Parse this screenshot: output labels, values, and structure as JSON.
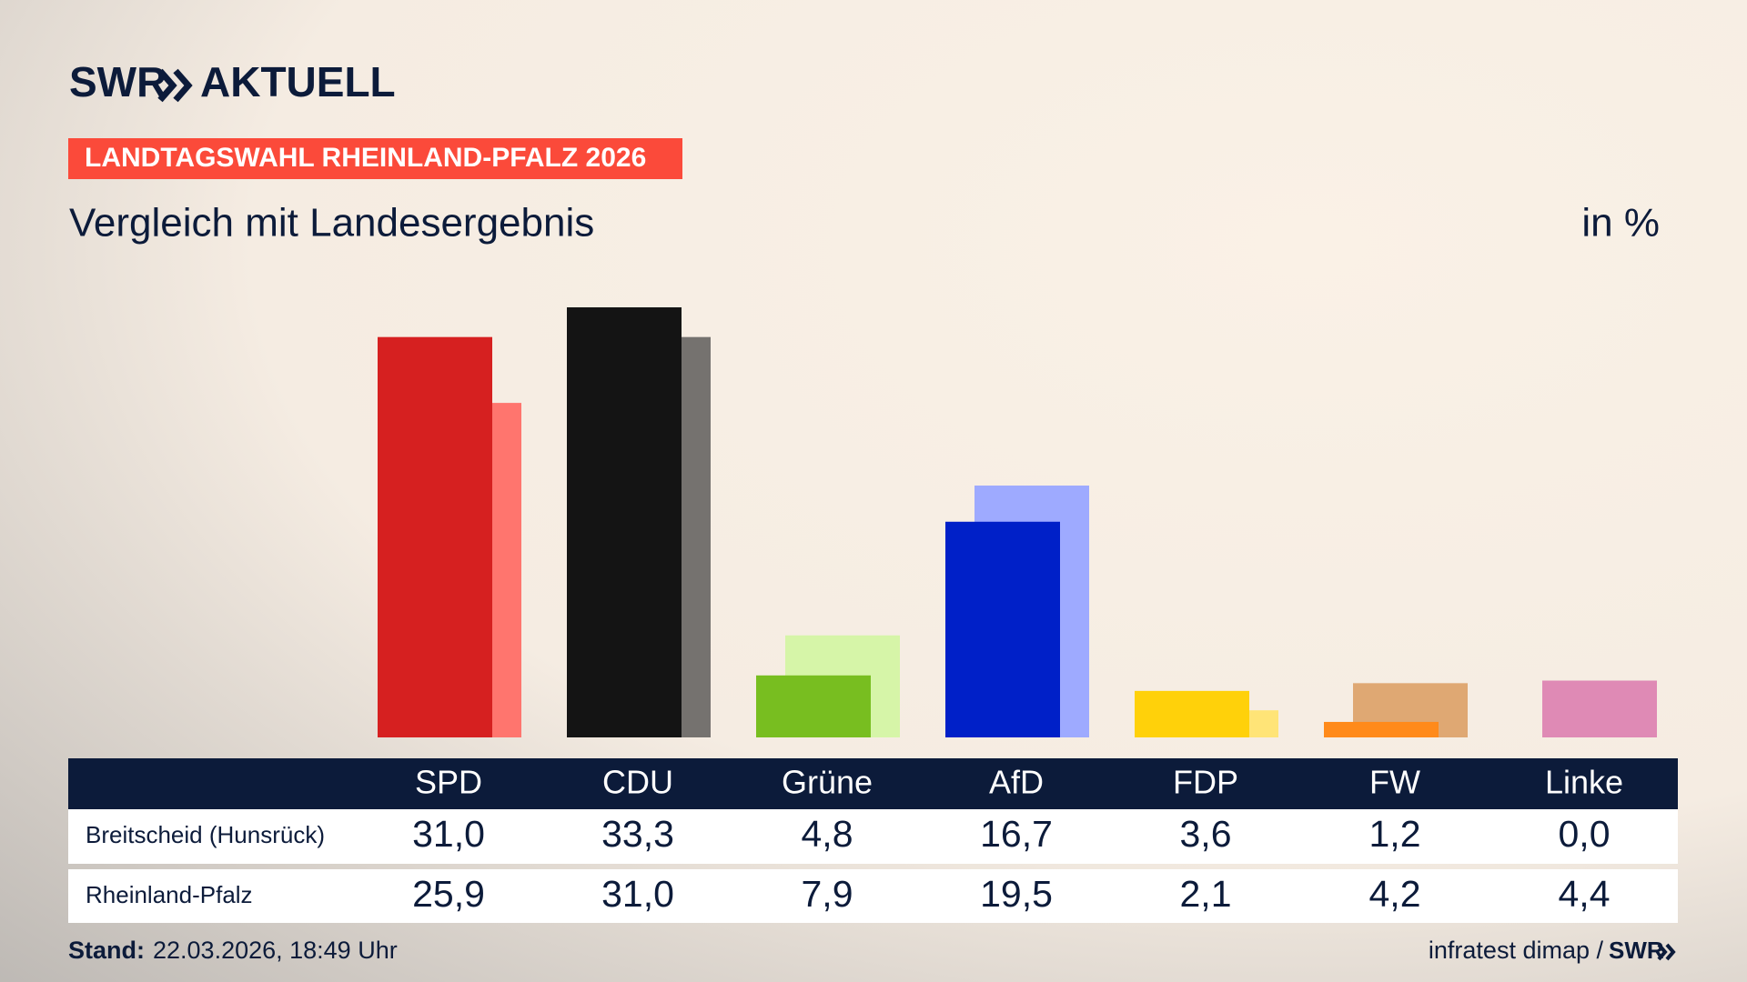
{
  "header": {
    "brand": "SWR",
    "brand_suffix": "AKTUELL",
    "kicker": "LANDTAGSWAHL RHEINLAND-PFALZ 2026"
  },
  "chart_data": {
    "type": "bar",
    "subtitle": "Vergleich mit Landesergebnis",
    "unit": "in %",
    "categories": [
      "SPD",
      "CDU",
      "Grüne",
      "AfD",
      "FDP",
      "FW",
      "Linke"
    ],
    "series": [
      {
        "name": "Breitscheid (Hunsrück)",
        "colors": [
          "#d62020",
          "#141414",
          "#78be20",
          "#0020c8",
          "#ffd10a",
          "#ff8a1a",
          "#e8bcd3"
        ],
        "values": [
          31.0,
          33.3,
          4.8,
          16.7,
          3.6,
          1.2,
          0.0
        ],
        "value_labels": [
          "31,0",
          "33,3",
          "4,8",
          "16,7",
          "3,6",
          "1,2",
          "0,0"
        ]
      },
      {
        "name": "Rheinland-Pfalz",
        "colors": [
          "#ff756e",
          "#75726f",
          "#d6f5a8",
          "#9eaaff",
          "#ffe477",
          "#dfa873",
          "#df8ab5"
        ],
        "values": [
          25.9,
          31.0,
          7.9,
          19.5,
          2.1,
          4.2,
          4.4
        ],
        "value_labels": [
          "25,9",
          "31,0",
          "7,9",
          "19,5",
          "2,1",
          "4,2",
          "4,4"
        ]
      }
    ]
  },
  "footer": {
    "stand_label": "Stand:",
    "stand": "22.03.2026, 18:49 Uhr",
    "source": "infratest dimap /",
    "source_brand": "SWR"
  }
}
